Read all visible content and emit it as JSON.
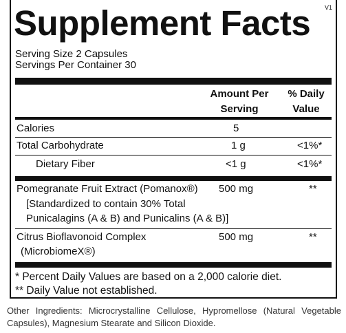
{
  "header": {
    "title": "Supplement Facts",
    "version": "V1",
    "serving_size": "Serving Size 2 Capsules",
    "servings_per_container": "Servings Per Container 30"
  },
  "table": {
    "columns": {
      "amount": [
        "Amount Per",
        "Serving"
      ],
      "daily_value": [
        "% Daily",
        "Value"
      ]
    },
    "rows": [
      {
        "name": [
          "Calories"
        ],
        "amount": "5"
      },
      {
        "name": [
          "Total Carbohydrate"
        ],
        "amount": "1 g",
        "daily_value": "<1%*"
      },
      {
        "name": [
          "Dietary Fiber"
        ],
        "amount": "<1 g",
        "daily_value": "<1%*"
      },
      {
        "name": [
          "Pomegranate Fruit Extract (Pomanox®)",
          "[Standardized to contain 30% Total",
          "Punicalagins (A & B) and Punicalins (A & B)]"
        ],
        "amount": "500 mg",
        "daily_value": "**"
      },
      {
        "name": [
          "Citrus Bioflavonoid Complex",
          "(MicrobiomeX®)"
        ],
        "amount": "500 mg",
        "daily_value": "**"
      }
    ]
  },
  "footnotes": [
    "* Percent Daily Values are based on a 2,000 calorie diet.",
    "** Daily Value not established."
  ],
  "other_ingredients": "Other Ingredients: Microcrystalline Cellulose, Hypromellose (Natural Vegetable Capsules), Magnesium Stearate and Silicon Dioxide."
}
